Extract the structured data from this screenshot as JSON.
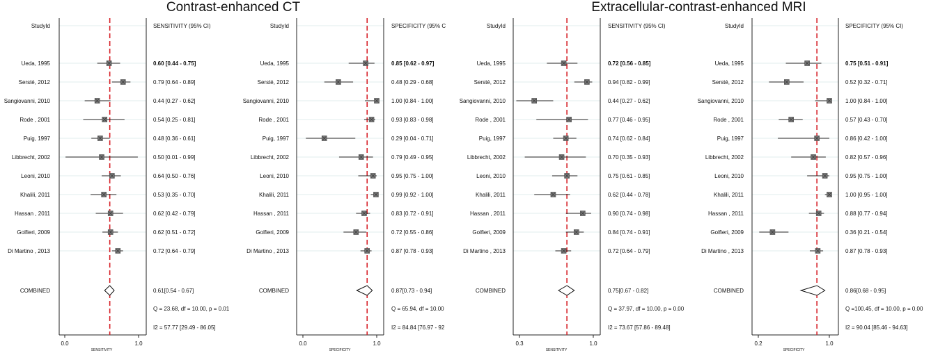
{
  "titles": [
    "Contrast-enhanced CT",
    "Extracellular-contrast-enhanced MRI"
  ],
  "colors": {
    "refline": "#d62027",
    "axis": "#222222",
    "point": "#777777",
    "grid": "#e0eeee"
  },
  "chart_data": [
    {
      "type": "forest",
      "study_header": "StudyId",
      "stat_header": "SENSITIVITY (95% CI)",
      "xlabel": "SENSITIVITY",
      "xlim": [
        0.0,
        1.0
      ],
      "xticks": [
        0.0,
        1.0
      ],
      "xtick_labels": [
        "0.0",
        "1.0"
      ],
      "refline": 0.61,
      "studies": [
        {
          "name": "Ueda, 1995",
          "est": 0.6,
          "lo": 0.44,
          "hi": 0.75,
          "text": "0.60 [0.44 - 0.75]",
          "bold": true
        },
        {
          "name": "Sersté, 2012",
          "est": 0.79,
          "lo": 0.64,
          "hi": 0.89,
          "text": "0.79 [0.64 - 0.89]"
        },
        {
          "name": "Sangiovanni, 2010",
          "est": 0.44,
          "lo": 0.27,
          "hi": 0.62,
          "text": "0.44 [0.27 - 0.62]"
        },
        {
          "name": "Rode , 2001",
          "est": 0.54,
          "lo": 0.25,
          "hi": 0.81,
          "text": "0.54 [0.25 - 0.81]"
        },
        {
          "name": "Puig, 1997",
          "est": 0.48,
          "lo": 0.36,
          "hi": 0.61,
          "text": "0.48 [0.36 - 0.61]"
        },
        {
          "name": "Libbrecht, 2002",
          "est": 0.5,
          "lo": 0.01,
          "hi": 0.99,
          "text": "0.50 [0.01 - 0.99]"
        },
        {
          "name": "Leoni, 2010",
          "est": 0.64,
          "lo": 0.5,
          "hi": 0.76,
          "text": "0.64 [0.50 - 0.76]"
        },
        {
          "name": "Khalili, 2011",
          "est": 0.53,
          "lo": 0.35,
          "hi": 0.7,
          "text": "0.53 [0.35 - 0.70]"
        },
        {
          "name": "Hassan , 2011",
          "est": 0.62,
          "lo": 0.42,
          "hi": 0.79,
          "text": "0.62 [0.42 - 0.79]"
        },
        {
          "name": "Golfieri, 2009",
          "est": 0.62,
          "lo": 0.51,
          "hi": 0.72,
          "text": "0.62 [0.51 - 0.72]"
        },
        {
          "name": "Di Martino , 2013",
          "est": 0.72,
          "lo": 0.64,
          "hi": 0.79,
          "text": "0.72 [0.64 - 0.79]"
        }
      ],
      "combined": {
        "name": "COMBINED",
        "est": 0.61,
        "lo": 0.54,
        "hi": 0.67,
        "text": "0.61[0.54 - 0.67]"
      },
      "q_text": "Q = 23.68, df = 10.00, p =  0.01",
      "i2_text": "I2 = 57.77 [29.49 - 86.05]"
    },
    {
      "type": "forest",
      "study_header": "StudyId",
      "stat_header": "SPECIFICITY (95% C",
      "xlabel": "SPECIFICITY",
      "xlim": [
        0.0,
        1.0
      ],
      "xticks": [
        0.0,
        1.0
      ],
      "xtick_labels": [
        "0.0",
        "1.0"
      ],
      "refline": 0.87,
      "studies": [
        {
          "name": "Ueda, 1995",
          "est": 0.85,
          "lo": 0.62,
          "hi": 0.97,
          "text": "0.85 [0.62 - 0.97]",
          "bold": true
        },
        {
          "name": "Sersté, 2012",
          "est": 0.48,
          "lo": 0.29,
          "hi": 0.68,
          "text": "0.48 [0.29 - 0.68]"
        },
        {
          "name": "Sangiovanni, 2010",
          "est": 1.0,
          "lo": 0.84,
          "hi": 1.0,
          "text": "1.00 [0.84 - 1.00]"
        },
        {
          "name": "Rode , 2001",
          "est": 0.93,
          "lo": 0.83,
          "hi": 0.98,
          "text": "0.93 [0.83 - 0.98]"
        },
        {
          "name": "Puig, 1997",
          "est": 0.29,
          "lo": 0.04,
          "hi": 0.71,
          "text": "0.29 [0.04 - 0.71]"
        },
        {
          "name": "Libbrecht, 2002",
          "est": 0.79,
          "lo": 0.49,
          "hi": 0.95,
          "text": "0.79 [0.49 - 0.95]"
        },
        {
          "name": "Leoni, 2010",
          "est": 0.95,
          "lo": 0.75,
          "hi": 1.0,
          "text": "0.95 [0.75 - 1.00]"
        },
        {
          "name": "Khalili, 2011",
          "est": 0.99,
          "lo": 0.92,
          "hi": 1.0,
          "text": "0.99 [0.92 - 1.00]"
        },
        {
          "name": "Hassan , 2011",
          "est": 0.83,
          "lo": 0.72,
          "hi": 0.91,
          "text": "0.83 [0.72 - 0.91]"
        },
        {
          "name": "Golfieri, 2009",
          "est": 0.72,
          "lo": 0.55,
          "hi": 0.86,
          "text": "0.72 [0.55 - 0.86]"
        },
        {
          "name": "Di Martino , 2013",
          "est": 0.87,
          "lo": 0.78,
          "hi": 0.93,
          "text": "0.87 [0.78 - 0.93]"
        }
      ],
      "combined": {
        "name": "COMBINED",
        "est": 0.87,
        "lo": 0.73,
        "hi": 0.94,
        "text": "0.87[0.73 - 0.94]"
      },
      "q_text": "Q = 65.94, df = 10.00",
      "i2_text": "I2 = 84.84 [76.97 - 92"
    },
    {
      "type": "forest",
      "study_header": "StudyId",
      "stat_header": "SENSITIVITY (95% CI)",
      "xlabel": "SENSITIVITY",
      "xlim": [
        0.3,
        1.0
      ],
      "xticks": [
        0.3,
        1.0
      ],
      "xtick_labels": [
        "0.3",
        "1.0"
      ],
      "refline": 0.75,
      "studies": [
        {
          "name": "Ueda, 1995",
          "est": 0.72,
          "lo": 0.56,
          "hi": 0.85,
          "text": "0.72 [0.56 - 0.85]",
          "bold": true
        },
        {
          "name": "Sersté, 2012",
          "est": 0.94,
          "lo": 0.82,
          "hi": 0.99,
          "text": "0.94 [0.82 - 0.99]"
        },
        {
          "name": "Sangiovanni, 2010",
          "est": 0.44,
          "lo": 0.27,
          "hi": 0.62,
          "text": "0.44 [0.27 - 0.62]"
        },
        {
          "name": "Rode , 2001",
          "est": 0.77,
          "lo": 0.46,
          "hi": 0.95,
          "text": "0.77 [0.46 - 0.95]"
        },
        {
          "name": "Puig, 1997",
          "est": 0.74,
          "lo": 0.62,
          "hi": 0.84,
          "text": "0.74 [0.62 - 0.84]"
        },
        {
          "name": "Libbrecht, 2002",
          "est": 0.7,
          "lo": 0.35,
          "hi": 0.93,
          "text": "0.70 [0.35 - 0.93]"
        },
        {
          "name": "Leoni, 2010",
          "est": 0.75,
          "lo": 0.61,
          "hi": 0.85,
          "text": "0.75 [0.61 - 0.85]"
        },
        {
          "name": "Khalili, 2011",
          "est": 0.62,
          "lo": 0.44,
          "hi": 0.78,
          "text": "0.62 [0.44 - 0.78]"
        },
        {
          "name": "Hassan , 2011",
          "est": 0.9,
          "lo": 0.74,
          "hi": 0.98,
          "text": "0.90 [0.74 - 0.98]"
        },
        {
          "name": "Golfieri, 2009",
          "est": 0.84,
          "lo": 0.74,
          "hi": 0.91,
          "text": "0.84 [0.74 - 0.91]"
        },
        {
          "name": "Di Martino , 2013",
          "est": 0.72,
          "lo": 0.64,
          "hi": 0.79,
          "text": "0.72 [0.64 - 0.79]"
        }
      ],
      "combined": {
        "name": "COMBINED",
        "est": 0.75,
        "lo": 0.67,
        "hi": 0.82,
        "text": "0.75[0.67 - 0.82]"
      },
      "q_text": "Q = 37.97, df = 10.00, p =  0.00",
      "i2_text": "I2 = 73.67 [57.86 - 89.48]"
    },
    {
      "type": "forest",
      "study_header": "StudyId",
      "stat_header": "SPECIFICITY (95% CI)",
      "xlabel": "SPECIFICITY",
      "xlim": [
        0.2,
        1.0
      ],
      "xticks": [
        0.2,
        1.0
      ],
      "xtick_labels": [
        "0.2",
        "1.0"
      ],
      "refline": 0.86,
      "studies": [
        {
          "name": "Ueda, 1995",
          "est": 0.75,
          "lo": 0.51,
          "hi": 0.91,
          "text": "0.75 [0.51 - 0.91]",
          "bold": true
        },
        {
          "name": "Sersté, 2012",
          "est": 0.52,
          "lo": 0.32,
          "hi": 0.71,
          "text": "0.52 [0.32 - 0.71]"
        },
        {
          "name": "Sangiovanni, 2010",
          "est": 1.0,
          "lo": 0.84,
          "hi": 1.0,
          "text": "1.00 [0.84 - 1.00]"
        },
        {
          "name": "Rode , 2001",
          "est": 0.57,
          "lo": 0.43,
          "hi": 0.7,
          "text": "0.57 [0.43 - 0.70]"
        },
        {
          "name": "Puig, 1997",
          "est": 0.86,
          "lo": 0.42,
          "hi": 1.0,
          "text": "0.86 [0.42 - 1.00]"
        },
        {
          "name": "Libbrecht, 2002",
          "est": 0.82,
          "lo": 0.57,
          "hi": 0.96,
          "text": "0.82 [0.57 - 0.96]"
        },
        {
          "name": "Leoni, 2010",
          "est": 0.95,
          "lo": 0.75,
          "hi": 1.0,
          "text": "0.95 [0.75 - 1.00]"
        },
        {
          "name": "Khalili, 2011",
          "est": 1.0,
          "lo": 0.95,
          "hi": 1.0,
          "text": "1.00 [0.95 - 1.00]"
        },
        {
          "name": "Hassan , 2011",
          "est": 0.88,
          "lo": 0.77,
          "hi": 0.94,
          "text": "0.88 [0.77 - 0.94]"
        },
        {
          "name": "Golfieri, 2009",
          "est": 0.36,
          "lo": 0.21,
          "hi": 0.54,
          "text": "0.36 [0.21 - 0.54]"
        },
        {
          "name": "Di Martino , 2013",
          "est": 0.87,
          "lo": 0.78,
          "hi": 0.93,
          "text": "0.87 [0.78 - 0.93]"
        }
      ],
      "combined": {
        "name": "COMBINED",
        "est": 0.86,
        "lo": 0.68,
        "hi": 0.95,
        "text": "0.86[0.68 - 0.95]"
      },
      "q_text": "Q =100.45, df = 10.00, p =  0.00",
      "i2_text": "I2 = 90.04 [85.46 - 94.63]"
    }
  ]
}
